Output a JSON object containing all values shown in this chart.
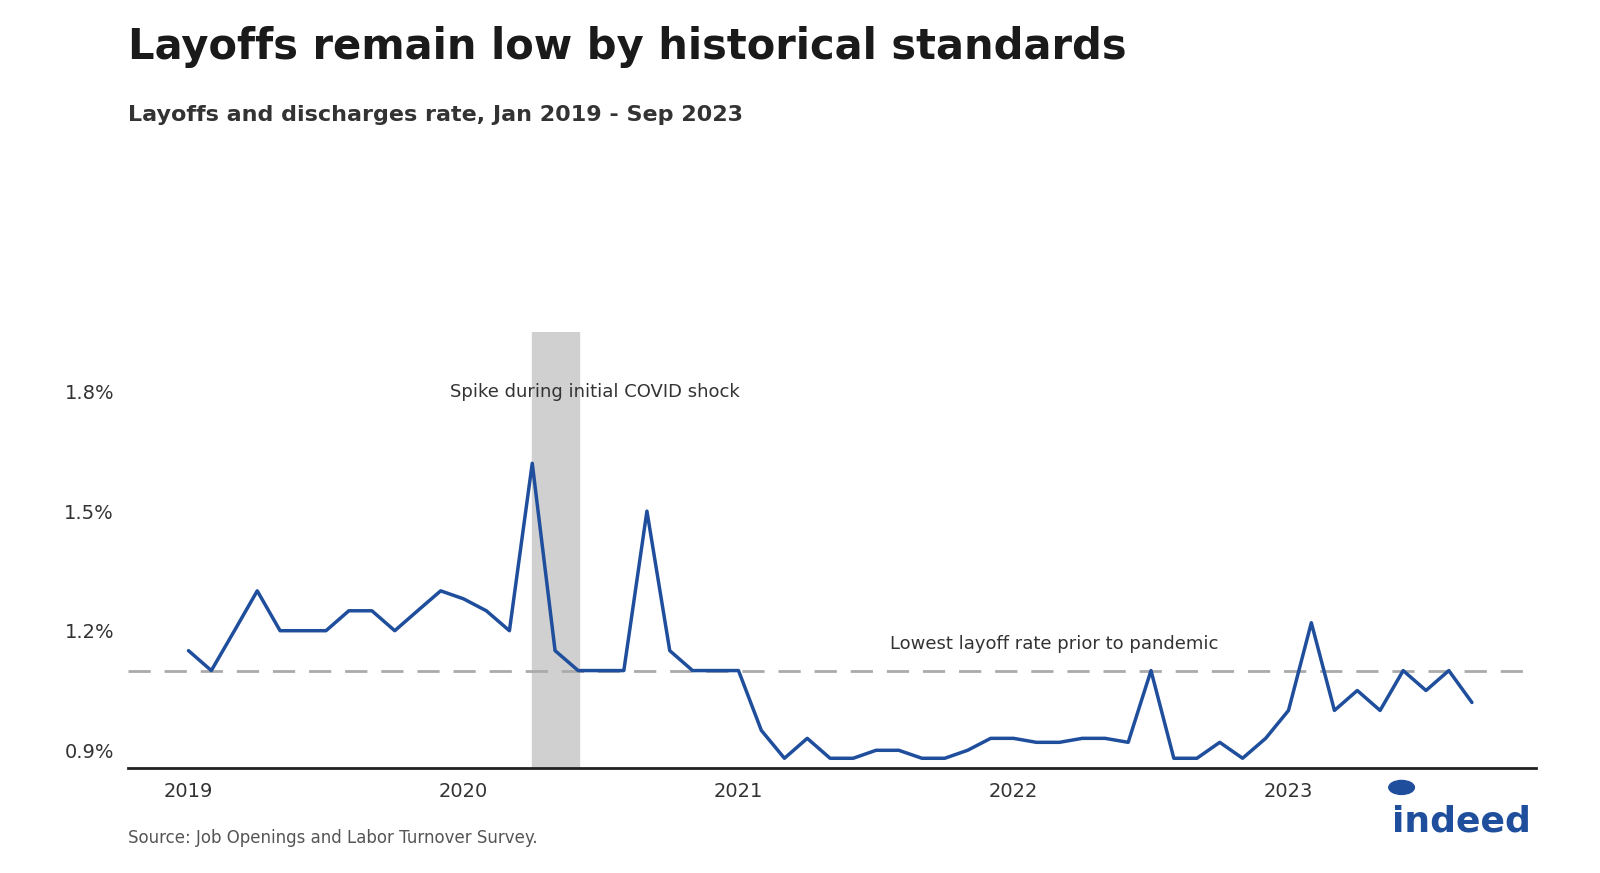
{
  "title": "Layoffs remain low by historical standards",
  "subtitle": "Layoffs and discharges rate, Jan 2019 - Sep 2023",
  "source": "Source: Job Openings and Labor Turnover Survey.",
  "line_color": "#1f4e9c",
  "line_width": 2.5,
  "dashed_line_value": 1.1,
  "dashed_line_color": "#aaaaaa",
  "covid_shade_start": 2020.25,
  "covid_shade_end": 2020.42,
  "covid_shade_color": "#d0d0d0",
  "annotation_covid": "Spike during initial COVID shock",
  "annotation_lowest": "Lowest layoff rate prior to pandemic",
  "ylim_min": 0.855,
  "ylim_max": 1.95,
  "yticks": [
    0.9,
    1.2,
    1.5,
    1.8
  ],
  "ytick_labels": [
    "0.9%",
    "1.2%",
    "1.5%",
    "1.8%"
  ],
  "dates": [
    2019.0,
    2019.083,
    2019.167,
    2019.25,
    2019.333,
    2019.417,
    2019.5,
    2019.583,
    2019.667,
    2019.75,
    2019.833,
    2019.917,
    2020.0,
    2020.083,
    2020.167,
    2020.25,
    2020.333,
    2020.417,
    2020.5,
    2020.583,
    2020.667,
    2020.75,
    2020.833,
    2020.917,
    2021.0,
    2021.083,
    2021.167,
    2021.25,
    2021.333,
    2021.417,
    2021.5,
    2021.583,
    2021.667,
    2021.75,
    2021.833,
    2021.917,
    2022.0,
    2022.083,
    2022.167,
    2022.25,
    2022.333,
    2022.417,
    2022.5,
    2022.583,
    2022.667,
    2022.75,
    2022.833,
    2022.917,
    2023.0,
    2023.083,
    2023.167,
    2023.25,
    2023.333,
    2023.417,
    2023.5,
    2023.583,
    2023.667
  ],
  "values": [
    1.15,
    1.1,
    1.2,
    1.3,
    1.2,
    1.2,
    1.2,
    1.25,
    1.25,
    1.2,
    1.25,
    1.3,
    1.28,
    1.25,
    1.2,
    1.62,
    1.15,
    1.1,
    1.1,
    1.1,
    1.5,
    1.15,
    1.1,
    1.1,
    1.1,
    0.95,
    0.88,
    0.93,
    0.88,
    0.88,
    0.9,
    0.9,
    0.88,
    0.88,
    0.9,
    0.93,
    0.93,
    0.92,
    0.92,
    0.93,
    0.93,
    0.92,
    1.1,
    0.88,
    0.88,
    0.92,
    0.88,
    0.93,
    1.0,
    1.22,
    1.0,
    1.05,
    1.0,
    1.1,
    1.05,
    1.1,
    1.02
  ],
  "xtick_positions": [
    2019.0,
    2020.0,
    2021.0,
    2022.0,
    2023.0
  ],
  "xtick_labels": [
    "2019",
    "2020",
    "2021",
    "2022",
    "2023"
  ],
  "background_color": "#ffffff",
  "title_fontsize": 30,
  "subtitle_fontsize": 16,
  "tick_fontsize": 14,
  "annotation_fontsize": 13,
  "source_fontsize": 12
}
